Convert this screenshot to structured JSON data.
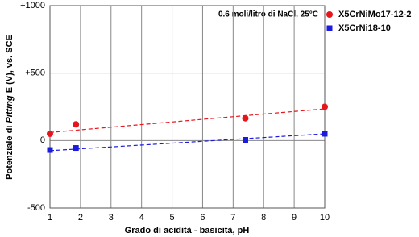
{
  "chart_data": {
    "type": "scatter",
    "annotation": "0.6 moli/litro di NaCl, 25°C",
    "xlabel": "Grado di acidità - basicità, pH",
    "ylabel": [
      "Potenziale di ",
      "Pitting",
      " E (V), vs. SCE"
    ],
    "xlim": [
      1,
      10
    ],
    "xticks": [
      1,
      2,
      3,
      4,
      5,
      6,
      7,
      8,
      9,
      10
    ],
    "ylim": [
      -500,
      1000
    ],
    "yticks": [
      -500,
      0,
      {
        "value": 500,
        "label": "+500"
      },
      {
        "value": 1000,
        "label": "+1000"
      }
    ],
    "grid": true,
    "legend": "right",
    "series": [
      {
        "name": "X5CrNiMo17-12-2",
        "color": "#e8141c",
        "marker": "circle",
        "x": [
          1,
          1.85,
          7.4,
          10
        ],
        "values": [
          50,
          120,
          165,
          250
        ]
      },
      {
        "name": "X5CrNi18-10",
        "color": "#1a1ae0",
        "marker": "square",
        "x": [
          1,
          1.85,
          7.4,
          10
        ],
        "values": [
          -70,
          -55,
          5,
          50
        ]
      }
    ],
    "trendlines": [
      {
        "color": "#e8141c",
        "x": [
          1,
          10
        ],
        "values": [
          60,
          235
        ]
      },
      {
        "color": "#1a1ae0",
        "x": [
          1,
          10
        ],
        "values": [
          -75,
          50
        ]
      }
    ]
  }
}
